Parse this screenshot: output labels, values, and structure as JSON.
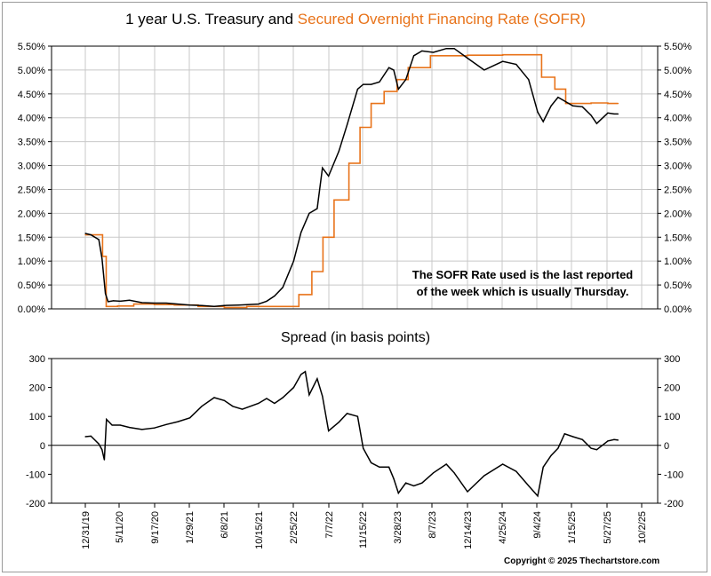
{
  "title": {
    "part1": "1 year U.S. Treasury and ",
    "part2": "Secured Overnight Financing Rate (SOFR)"
  },
  "subtitle": "Spread (in basis points)",
  "note": {
    "line1": "The SOFR Rate used is the last reported",
    "line2": "of the week which is usually Thursday."
  },
  "copyright": "Copyright © 2025 Thechartstore.com",
  "colors": {
    "treasury": "#000000",
    "sofr": "#e8731a",
    "grid": "#c8c8c8"
  },
  "chart_data": [
    {
      "type": "line",
      "title": "1 year U.S. Treasury and Secured Overnight Financing Rate (SOFR)",
      "x_unit": "date",
      "ylim": [
        0,
        5.5
      ],
      "y_ticks": [
        "0.00%",
        "0.50%",
        "1.00%",
        "1.50%",
        "2.00%",
        "2.50%",
        "3.00%",
        "3.50%",
        "4.00%",
        "4.50%",
        "5.00%",
        "5.50%"
      ],
      "grid": true,
      "series": [
        {
          "name": "1 year U.S. Treasury",
          "color": "#000000",
          "points": [
            [
              "2019-12-31",
              1.58
            ],
            [
              "2020-01-21",
              1.55
            ],
            [
              "2020-02-20",
              1.45
            ],
            [
              "2020-03-03",
              1.05
            ],
            [
              "2020-03-16",
              0.32
            ],
            [
              "2020-03-26",
              0.15
            ],
            [
              "2020-04-15",
              0.17
            ],
            [
              "2020-05-11",
              0.16
            ],
            [
              "2020-06-15",
              0.18
            ],
            [
              "2020-08-01",
              0.13
            ],
            [
              "2020-09-17",
              0.12
            ],
            [
              "2020-11-01",
              0.12
            ],
            [
              "2020-12-15",
              0.1
            ],
            [
              "2021-01-29",
              0.08
            ],
            [
              "2021-03-15",
              0.07
            ],
            [
              "2021-05-01",
              0.05
            ],
            [
              "2021-06-08",
              0.07
            ],
            [
              "2021-08-01",
              0.08
            ],
            [
              "2021-10-15",
              0.1
            ],
            [
              "2021-11-15",
              0.16
            ],
            [
              "2021-12-15",
              0.27
            ],
            [
              "2022-01-15",
              0.45
            ],
            [
              "2022-02-25",
              1.0
            ],
            [
              "2022-03-25",
              1.6
            ],
            [
              "2022-04-25",
              2.0
            ],
            [
              "2022-05-25",
              2.1
            ],
            [
              "2022-06-14",
              2.95
            ],
            [
              "2022-07-07",
              2.78
            ],
            [
              "2022-08-15",
              3.3
            ],
            [
              "2022-09-15",
              3.85
            ],
            [
              "2022-10-25",
              4.6
            ],
            [
              "2022-11-15",
              4.7
            ],
            [
              "2022-12-15",
              4.7
            ],
            [
              "2023-01-15",
              4.75
            ],
            [
              "2023-02-20",
              5.05
            ],
            [
              "2023-03-10",
              5.0
            ],
            [
              "2023-03-28",
              4.6
            ],
            [
              "2023-04-25",
              4.8
            ],
            [
              "2023-05-25",
              5.3
            ],
            [
              "2023-06-25",
              5.4
            ],
            [
              "2023-08-07",
              5.37
            ],
            [
              "2023-09-25",
              5.45
            ],
            [
              "2023-10-25",
              5.45
            ],
            [
              "2023-12-14",
              5.25
            ],
            [
              "2024-02-15",
              5.0
            ],
            [
              "2024-04-25",
              5.18
            ],
            [
              "2024-06-15",
              5.12
            ],
            [
              "2024-08-01",
              4.8
            ],
            [
              "2024-09-04",
              4.12
            ],
            [
              "2024-09-25",
              3.92
            ],
            [
              "2024-10-25",
              4.25
            ],
            [
              "2024-11-20",
              4.43
            ],
            [
              "2025-01-15",
              4.25
            ],
            [
              "2025-02-20",
              4.23
            ],
            [
              "2025-03-25",
              4.05
            ],
            [
              "2025-04-15",
              3.88
            ],
            [
              "2025-05-27",
              4.1
            ],
            [
              "2025-06-20",
              4.08
            ],
            [
              "2025-07-05",
              4.08
            ]
          ]
        },
        {
          "name": "Secured Overnight Financing Rate (SOFR)",
          "color": "#e8731a",
          "step": true,
          "points": [
            [
              "2019-12-31",
              1.55
            ],
            [
              "2020-02-28",
              1.55
            ],
            [
              "2020-03-05",
              1.1
            ],
            [
              "2020-03-19",
              0.05
            ],
            [
              "2020-05-01",
              0.06
            ],
            [
              "2020-07-01",
              0.1
            ],
            [
              "2020-09-17",
              0.09
            ],
            [
              "2020-12-01",
              0.08
            ],
            [
              "2021-03-01",
              0.05
            ],
            [
              "2021-06-08",
              0.03
            ],
            [
              "2021-09-01",
              0.05
            ],
            [
              "2021-12-30",
              0.05
            ],
            [
              "2022-03-17",
              0.3
            ],
            [
              "2022-05-05",
              0.78
            ],
            [
              "2022-06-16",
              1.5
            ],
            [
              "2022-07-28",
              2.28
            ],
            [
              "2022-09-22",
              3.05
            ],
            [
              "2022-11-03",
              3.8
            ],
            [
              "2022-12-15",
              4.3
            ],
            [
              "2023-02-02",
              4.55
            ],
            [
              "2023-03-23",
              4.8
            ],
            [
              "2023-05-04",
              5.05
            ],
            [
              "2023-07-27",
              5.3
            ],
            [
              "2023-12-14",
              5.31
            ],
            [
              "2024-04-25",
              5.32
            ],
            [
              "2024-09-19",
              4.85
            ],
            [
              "2024-11-08",
              4.6
            ],
            [
              "2024-12-19",
              4.3
            ],
            [
              "2025-03-25",
              4.31
            ],
            [
              "2025-05-27",
              4.3
            ],
            [
              "2025-07-05",
              4.3
            ]
          ]
        }
      ]
    },
    {
      "type": "line",
      "title": "Spread (in basis points)",
      "x_unit": "date",
      "ylim": [
        -200,
        300
      ],
      "y_ticks": [
        "-200",
        "-100",
        "0",
        "100",
        "200",
        "300"
      ],
      "x_ticks": [
        "12/31/19",
        "5/11/20",
        "9/17/20",
        "1/29/21",
        "6/8/21",
        "10/15/21",
        "2/25/22",
        "7/7/22",
        "11/15/22",
        "3/28/23",
        "8/7/23",
        "12/14/23",
        "4/25/24",
        "9/4/24",
        "1/15/25",
        "5/27/25",
        "10/2/25"
      ],
      "series": [
        {
          "name": "Spread",
          "color": "#000000",
          "points": [
            [
              "2019-12-31",
              30
            ],
            [
              "2020-01-21",
              32
            ],
            [
              "2020-02-20",
              5
            ],
            [
              "2020-03-03",
              -15
            ],
            [
              "2020-03-12",
              -50
            ],
            [
              "2020-03-20",
              90
            ],
            [
              "2020-04-10",
              70
            ],
            [
              "2020-05-11",
              70
            ],
            [
              "2020-06-15",
              62
            ],
            [
              "2020-08-01",
              55
            ],
            [
              "2020-09-17",
              60
            ],
            [
              "2020-11-01",
              72
            ],
            [
              "2020-12-15",
              82
            ],
            [
              "2021-01-29",
              95
            ],
            [
              "2021-03-15",
              135
            ],
            [
              "2021-05-01",
              165
            ],
            [
              "2021-06-08",
              155
            ],
            [
              "2021-07-10",
              135
            ],
            [
              "2021-08-15",
              125
            ],
            [
              "2021-10-15",
              145
            ],
            [
              "2021-11-15",
              162
            ],
            [
              "2021-12-15",
              145
            ],
            [
              "2022-01-15",
              165
            ],
            [
              "2022-02-25",
              200
            ],
            [
              "2022-03-25",
              245
            ],
            [
              "2022-04-10",
              255
            ],
            [
              "2022-04-25",
              175
            ],
            [
              "2022-05-25",
              230
            ],
            [
              "2022-06-14",
              170
            ],
            [
              "2022-07-07",
              50
            ],
            [
              "2022-08-15",
              80
            ],
            [
              "2022-09-15",
              110
            ],
            [
              "2022-10-25",
              100
            ],
            [
              "2022-11-15",
              -10
            ],
            [
              "2022-12-15",
              -60
            ],
            [
              "2023-01-15",
              -75
            ],
            [
              "2023-02-20",
              -75
            ],
            [
              "2023-03-10",
              -115
            ],
            [
              "2023-03-28",
              -165
            ],
            [
              "2023-04-25",
              -130
            ],
            [
              "2023-05-25",
              -140
            ],
            [
              "2023-06-25",
              -130
            ],
            [
              "2023-08-07",
              -95
            ],
            [
              "2023-09-25",
              -65
            ],
            [
              "2023-10-25",
              -95
            ],
            [
              "2023-12-14",
              -160
            ],
            [
              "2024-02-15",
              -105
            ],
            [
              "2024-04-25",
              -65
            ],
            [
              "2024-06-15",
              -90
            ],
            [
              "2024-08-01",
              -140
            ],
            [
              "2024-09-04",
              -175
            ],
            [
              "2024-09-25",
              -75
            ],
            [
              "2024-10-25",
              -35
            ],
            [
              "2024-11-20",
              -10
            ],
            [
              "2024-12-15",
              40
            ],
            [
              "2025-01-15",
              30
            ],
            [
              "2025-02-20",
              20
            ],
            [
              "2025-03-25",
              -10
            ],
            [
              "2025-04-15",
              -15
            ],
            [
              "2025-05-27",
              15
            ],
            [
              "2025-06-20",
              20
            ],
            [
              "2025-07-05",
              18
            ]
          ]
        }
      ]
    }
  ]
}
